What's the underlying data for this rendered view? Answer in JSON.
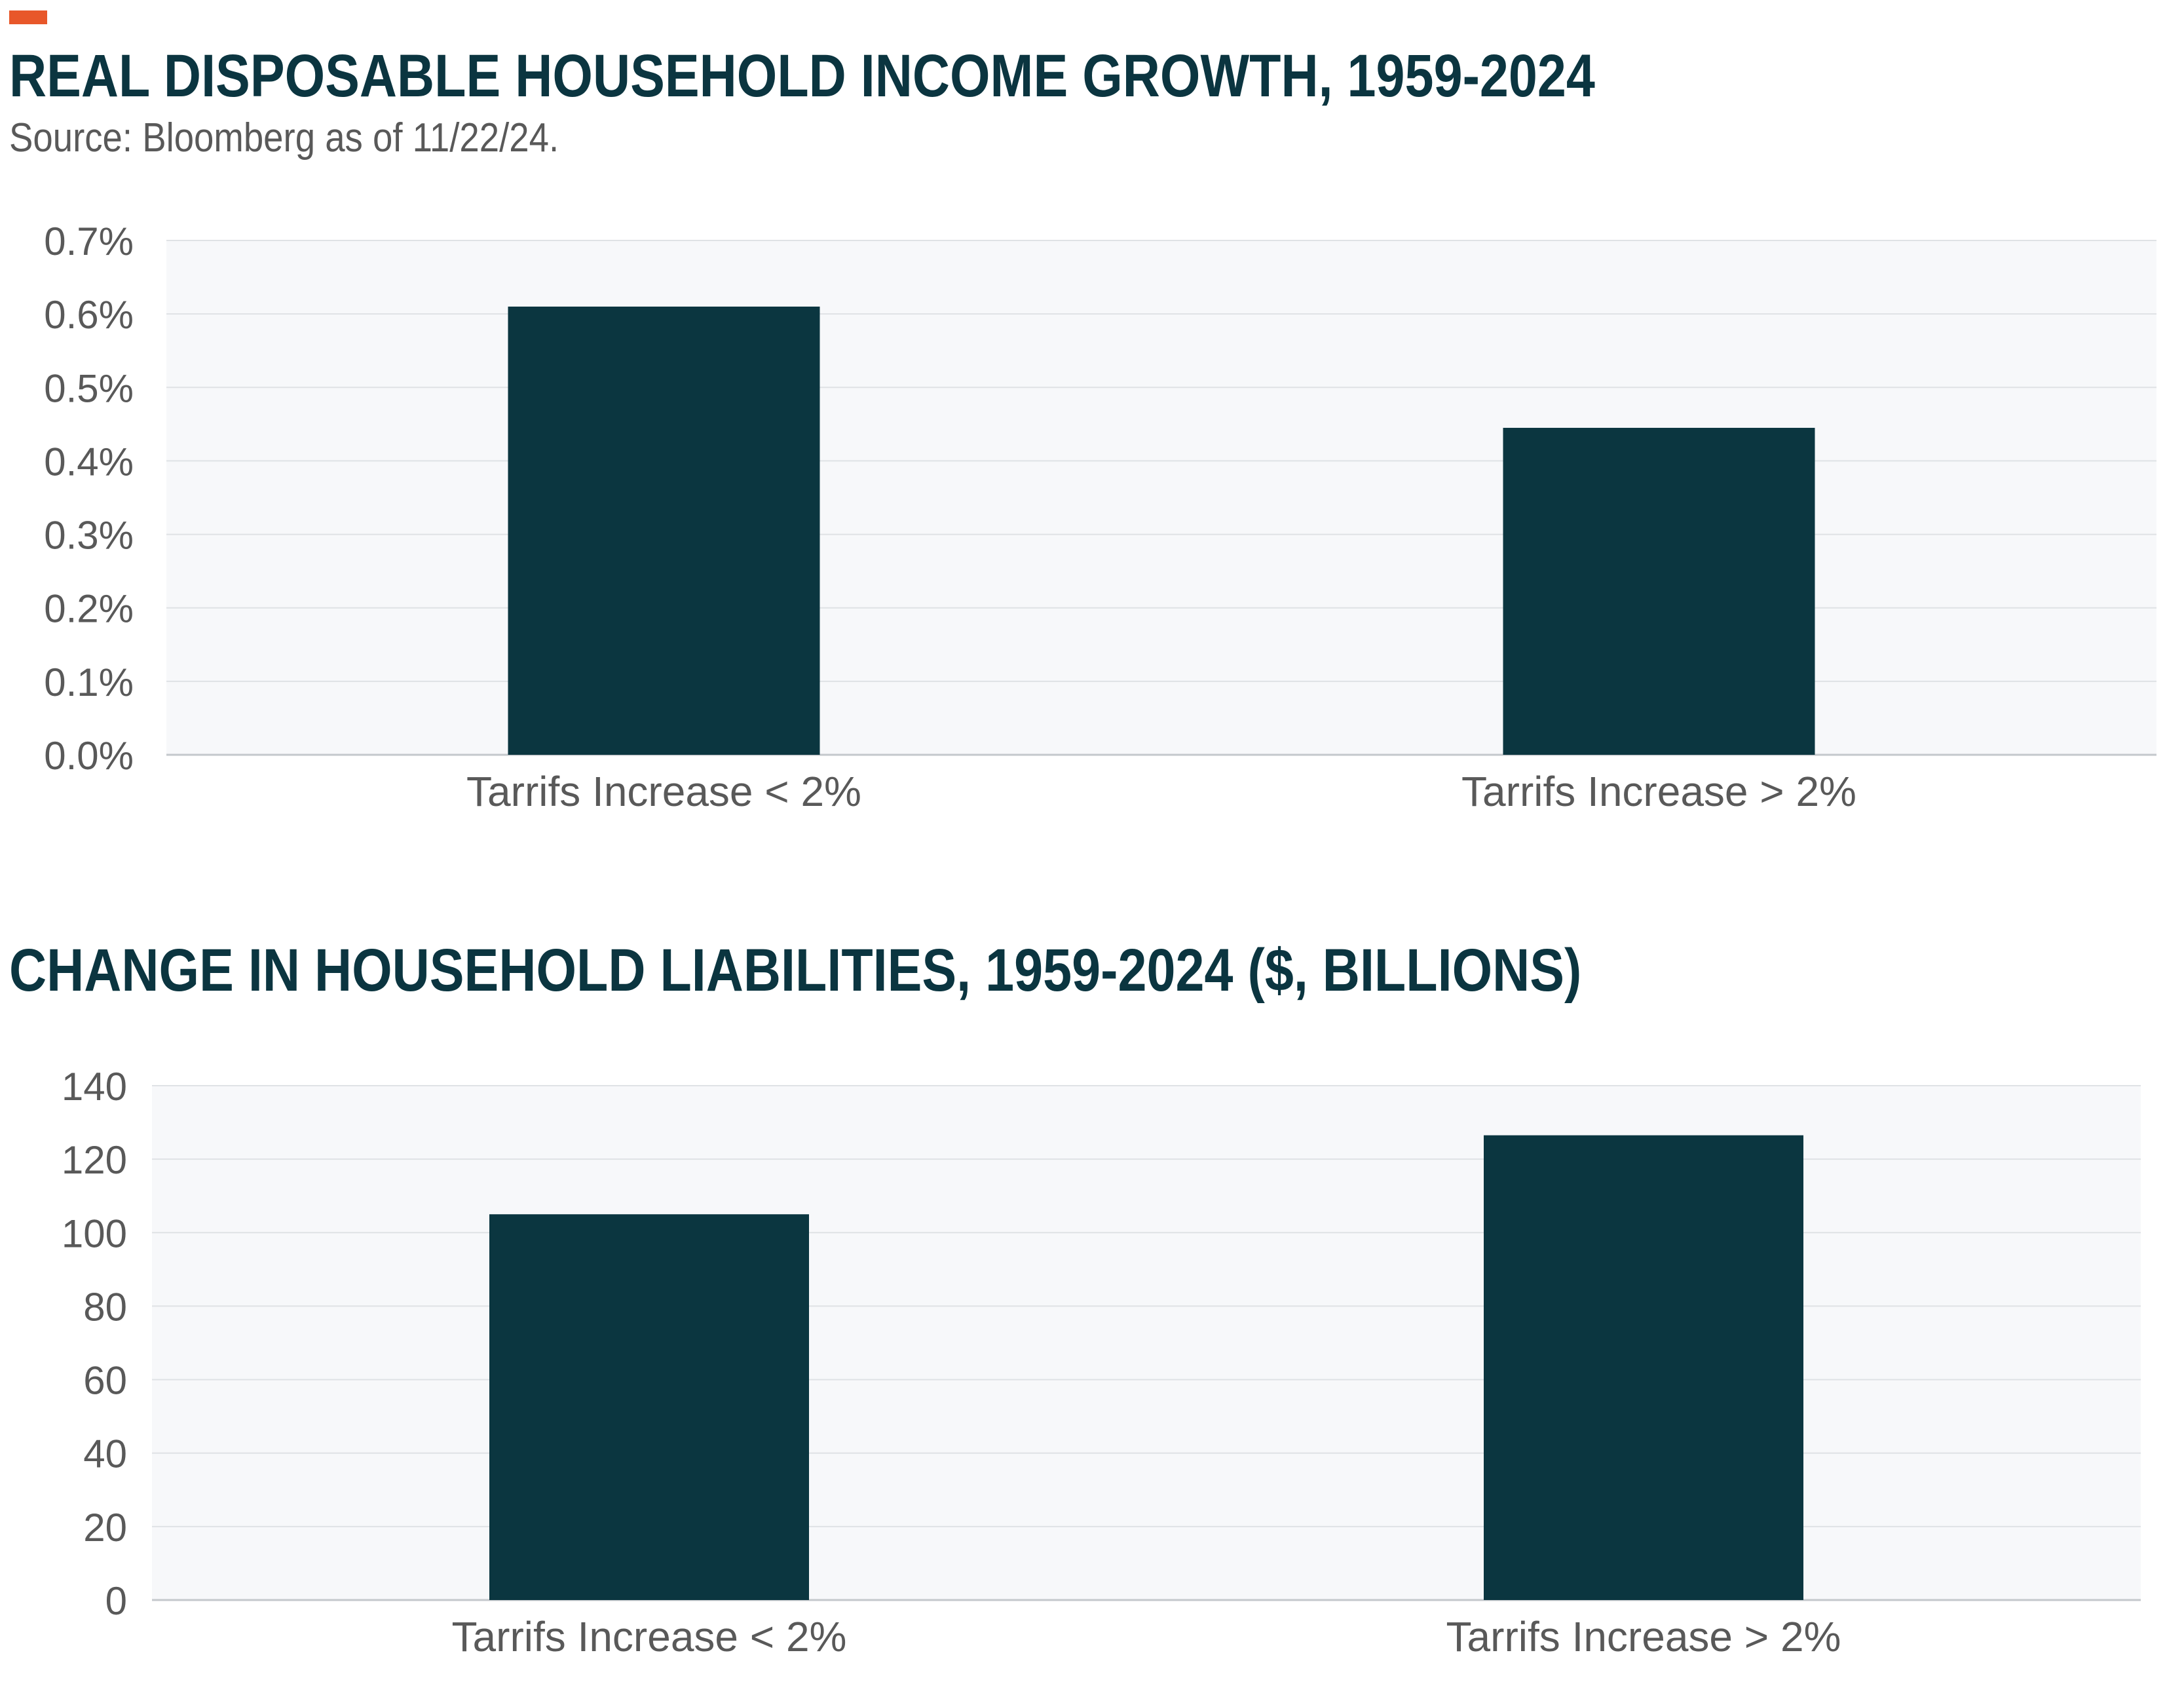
{
  "header": {
    "accent_color": "#e8572a"
  },
  "chart_data": [
    {
      "type": "bar",
      "title": "REAL DISPOSABLE HOUSEHOLD INCOME GROWTH, 1959-2024",
      "subtitle": "Source: Bloomberg as of 11/22/24.",
      "categories": [
        "Tarrifs Increase < 2%",
        "Tarrifs Increase > 2%"
      ],
      "values": [
        0.61,
        0.445
      ],
      "ylim": [
        0,
        0.7
      ],
      "yticks": [
        0,
        0.1,
        0.2,
        0.3,
        0.4,
        0.5,
        0.6,
        0.7
      ],
      "ytick_labels": [
        "0.0%",
        "0.1%",
        "0.2%",
        "0.3%",
        "0.4%",
        "0.5%",
        "0.6%",
        "0.7%"
      ],
      "grid": true,
      "bar_color": "#0b3640",
      "plot_background": "#f7f8fa"
    },
    {
      "type": "bar",
      "title": "CHANGE IN HOUSEHOLD LIABILITIES, 1959-2024 ($, BILLIONS)",
      "categories": [
        "Tarrifs Increase < 2%",
        "Tarrifs Increase > 2%"
      ],
      "values": [
        105,
        126.5
      ],
      "ylim": [
        0,
        140
      ],
      "yticks": [
        0,
        20,
        40,
        60,
        80,
        100,
        120,
        140
      ],
      "ytick_labels": [
        "0",
        "20",
        "40",
        "60",
        "80",
        "100",
        "120",
        "140"
      ],
      "grid": true,
      "bar_color": "#0b3640",
      "plot_background": "#f7f8fa"
    }
  ]
}
